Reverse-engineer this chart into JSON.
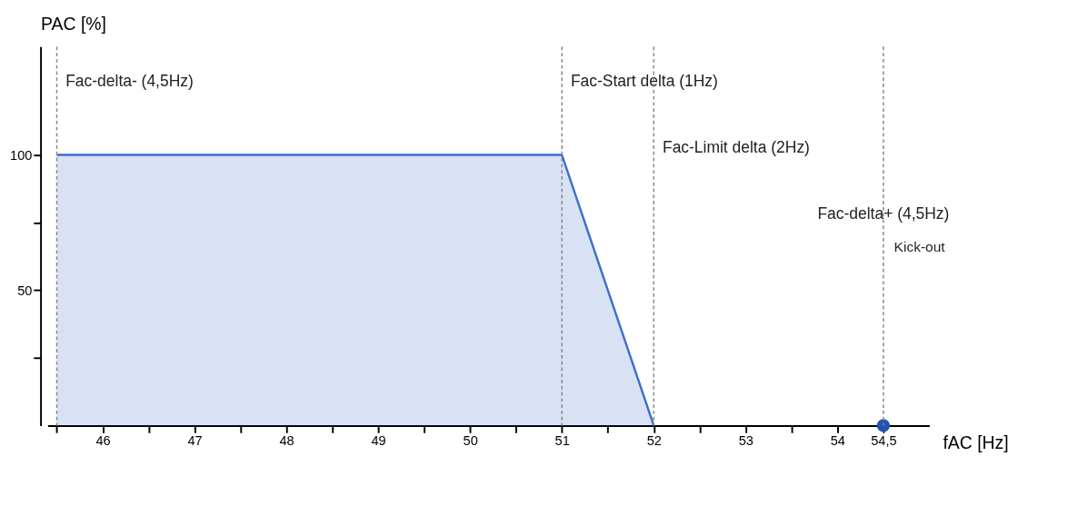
{
  "chart_data": {
    "type": "area",
    "xlabel": "fAC [Hz]",
    "ylabel": "PAC [%]",
    "xlim": [
      45.4,
      55
    ],
    "ylim": [
      0,
      140
    ],
    "xticks": [
      {
        "value": 45.5,
        "label": null
      },
      46,
      {
        "value": 46.5,
        "label": null
      },
      47,
      {
        "value": 47.5,
        "label": null
      },
      48,
      {
        "value": 48.5,
        "label": null
      },
      49,
      {
        "value": 49.5,
        "label": null
      },
      50,
      {
        "value": 50.5,
        "label": null
      },
      51,
      {
        "value": 51.5,
        "label": null
      },
      52,
      {
        "value": 52.5,
        "label": null
      },
      53,
      {
        "value": 53.5,
        "label": null
      },
      54,
      {
        "value": 54.5,
        "label": "54,5"
      }
    ],
    "yticks": [
      {
        "value": 25,
        "label": null
      },
      50,
      {
        "value": 75,
        "label": null
      },
      100
    ],
    "series": [
      {
        "color": "#3d6fc9",
        "x": [
          45.5,
          51,
          52
        ],
        "values": [
          100,
          100,
          0
        ]
      },
      {
        "type": "scatter",
        "color": "#2453b0",
        "marker": "circle",
        "x": [
          54.5
        ],
        "values": [
          0
        ]
      }
    ],
    "ref_lines": [
      {
        "axis": "x",
        "value": 45.5,
        "label": "Fac-delta- (4,5Hz)",
        "line_style": "dashed",
        "color": "#888888"
      },
      {
        "axis": "x",
        "value": 51,
        "label": "Fac-Start delta (1Hz)",
        "line_style": "dashed",
        "color": "#888888"
      },
      {
        "axis": "x",
        "value": 52,
        "label": "Fac-Limit delta (2Hz)",
        "line_style": "dashed",
        "color": "#888888"
      },
      {
        "axis": "x",
        "value": 54.5,
        "label": "Fac-delta+ (4,5Hz)",
        "line_style": "dashed",
        "color": "#888888"
      }
    ],
    "annotations": [
      "Kick-out"
    ],
    "grid": false
  }
}
